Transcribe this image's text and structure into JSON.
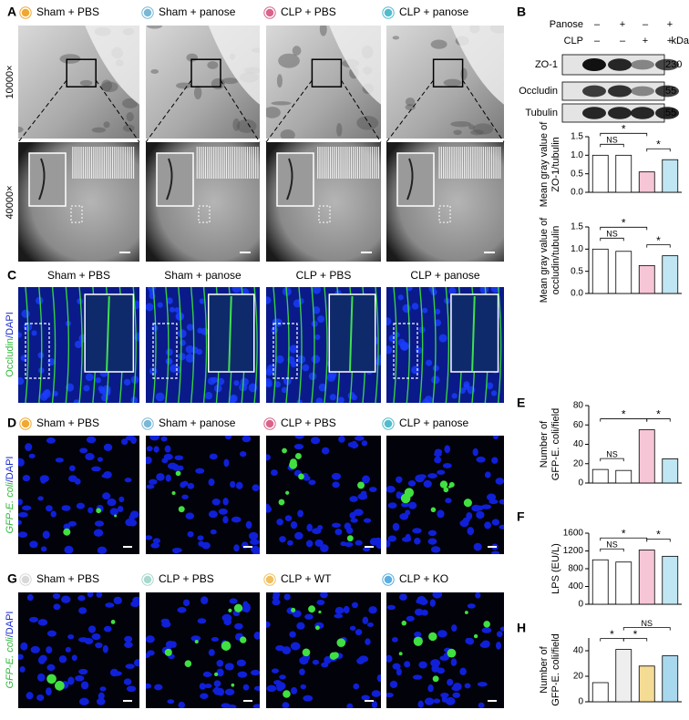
{
  "panel_labels": [
    "A",
    "B",
    "C",
    "D",
    "E",
    "F",
    "G",
    "H"
  ],
  "legend_a": {
    "names": [
      "Sham + PBS",
      "Sham + panose",
      "CLP + PBS",
      "CLP + panose"
    ],
    "colors": [
      "#f0a830",
      "#7ab8d6",
      "#d9648a",
      "#52bccc"
    ]
  },
  "magnifications": [
    "10000×",
    "40000×"
  ],
  "blot": {
    "rows": [
      "Panose",
      "CLP"
    ],
    "panose_signs": [
      "–",
      "+",
      "–",
      "+"
    ],
    "clp_signs": [
      "–",
      "–",
      "+",
      "+"
    ],
    "unit": "kDa",
    "bands": [
      "ZO-1",
      "Occludin",
      "Tubulin"
    ],
    "sizes": [
      230,
      55,
      55
    ]
  },
  "panel_c": {
    "columns": [
      "Sham + PBS",
      "Sham + panose",
      "CLP + PBS",
      "CLP + panose"
    ],
    "ylabel": [
      "Occludin",
      "/DAPI"
    ]
  },
  "legend_d": {
    "names": [
      "Sham + PBS",
      "Sham + panose",
      "CLP + PBS",
      "CLP + panose"
    ],
    "colors": [
      "#f0a830",
      "#7ab8d6",
      "#d9648a",
      "#52bccc"
    ]
  },
  "panel_d_ylabel": [
    "GFP-E. coli",
    "/DAPI"
  ],
  "legend_g": {
    "names": [
      "Sham + PBS",
      "CLP + PBS",
      "CLP + WT",
      "CLP + KO"
    ],
    "colors": [
      "#d8d8d8",
      "#a9d8cf",
      "#f0c060",
      "#5aaee0"
    ]
  },
  "panel_g_ylabel": [
    "GFP-E. coli",
    "/DAPI"
  ],
  "chart_data": [
    {
      "type": "bar",
      "ylabel": [
        "Mean gray value of",
        "ZO-1/tubulin"
      ],
      "values": [
        1.0,
        1.0,
        0.55,
        0.88
      ],
      "colors": [
        "#ffffff",
        "#ffffff",
        "#f7c6d6",
        "#bfe6f2"
      ],
      "ylim": [
        0,
        1.5
      ],
      "yticks": [
        {
          "value": 0,
          "label": "0.0"
        },
        {
          "value": 0.5,
          "label": "0.5"
        },
        {
          "value": 1,
          "label": "1.0"
        },
        {
          "value": 1.5,
          "label": "1.5"
        }
      ],
      "comparisons": [
        {
          "label": "NS",
          "pair": [
            0,
            1
          ]
        },
        {
          "label": "*",
          "pair": [
            0,
            2
          ]
        },
        {
          "label": "*",
          "pair": [
            2,
            3
          ]
        }
      ]
    },
    {
      "type": "bar",
      "ylabel": [
        "Mean gray value of",
        "occludin/tubulin"
      ],
      "values": [
        1.0,
        0.95,
        0.63,
        0.85
      ],
      "colors": [
        "#ffffff",
        "#ffffff",
        "#f7c6d6",
        "#bfe6f2"
      ],
      "ylim": [
        0,
        1.5
      ],
      "yticks": [
        {
          "value": 0,
          "label": "0.0"
        },
        {
          "value": 0.5,
          "label": "0.5"
        },
        {
          "value": 1,
          "label": "1.0"
        },
        {
          "value": 1.5,
          "label": "1.5"
        }
      ],
      "comparisons": [
        {
          "label": "NS",
          "pair": [
            0,
            1
          ]
        },
        {
          "label": "*",
          "pair": [
            0,
            2
          ]
        },
        {
          "label": "*",
          "pair": [
            2,
            3
          ]
        }
      ]
    },
    {
      "type": "bar",
      "ylabel": [
        "Number of",
        "GFP-E. coli/field"
      ],
      "values": [
        14,
        13,
        55,
        25
      ],
      "colors": [
        "#ffffff",
        "#ffffff",
        "#f7c6d6",
        "#bfe6f2"
      ],
      "ylim": [
        0,
        80
      ],
      "yticks": [
        0,
        20,
        40,
        60,
        80
      ],
      "comparisons": [
        {
          "label": "NS",
          "pair": [
            0,
            1
          ]
        },
        {
          "label": "*",
          "pair": [
            0,
            2
          ]
        },
        {
          "label": "*",
          "pair": [
            2,
            3
          ]
        }
      ]
    },
    {
      "type": "bar",
      "ylabel": [
        "LPS (EU/L)"
      ],
      "values": [
        1000,
        950,
        1220,
        1080
      ],
      "colors": [
        "#ffffff",
        "#ffffff",
        "#f7c6d6",
        "#bfe6f2"
      ],
      "ylim": [
        0,
        1600
      ],
      "yticks": [
        0,
        400,
        800,
        1200,
        1600
      ],
      "comparisons": [
        {
          "label": "NS",
          "pair": [
            0,
            1
          ]
        },
        {
          "label": "*",
          "pair": [
            0,
            2
          ]
        },
        {
          "label": "*",
          "pair": [
            2,
            3
          ]
        }
      ]
    },
    {
      "type": "bar",
      "ylabel": [
        "Number of",
        "GFP-E. coli/field"
      ],
      "values": [
        15,
        41,
        28,
        36
      ],
      "colors": [
        "#ffffff",
        "#eeeeee",
        "#f5dc95",
        "#a8d8ee"
      ],
      "ylim": [
        0,
        50
      ],
      "yticks": [
        0,
        20,
        40
      ],
      "comparisons": [
        {
          "label": "*",
          "pair": [
            0,
            1
          ]
        },
        {
          "label": "*",
          "pair": [
            1,
            2
          ]
        },
        {
          "label": "NS",
          "pair": [
            1,
            3
          ]
        }
      ]
    }
  ]
}
